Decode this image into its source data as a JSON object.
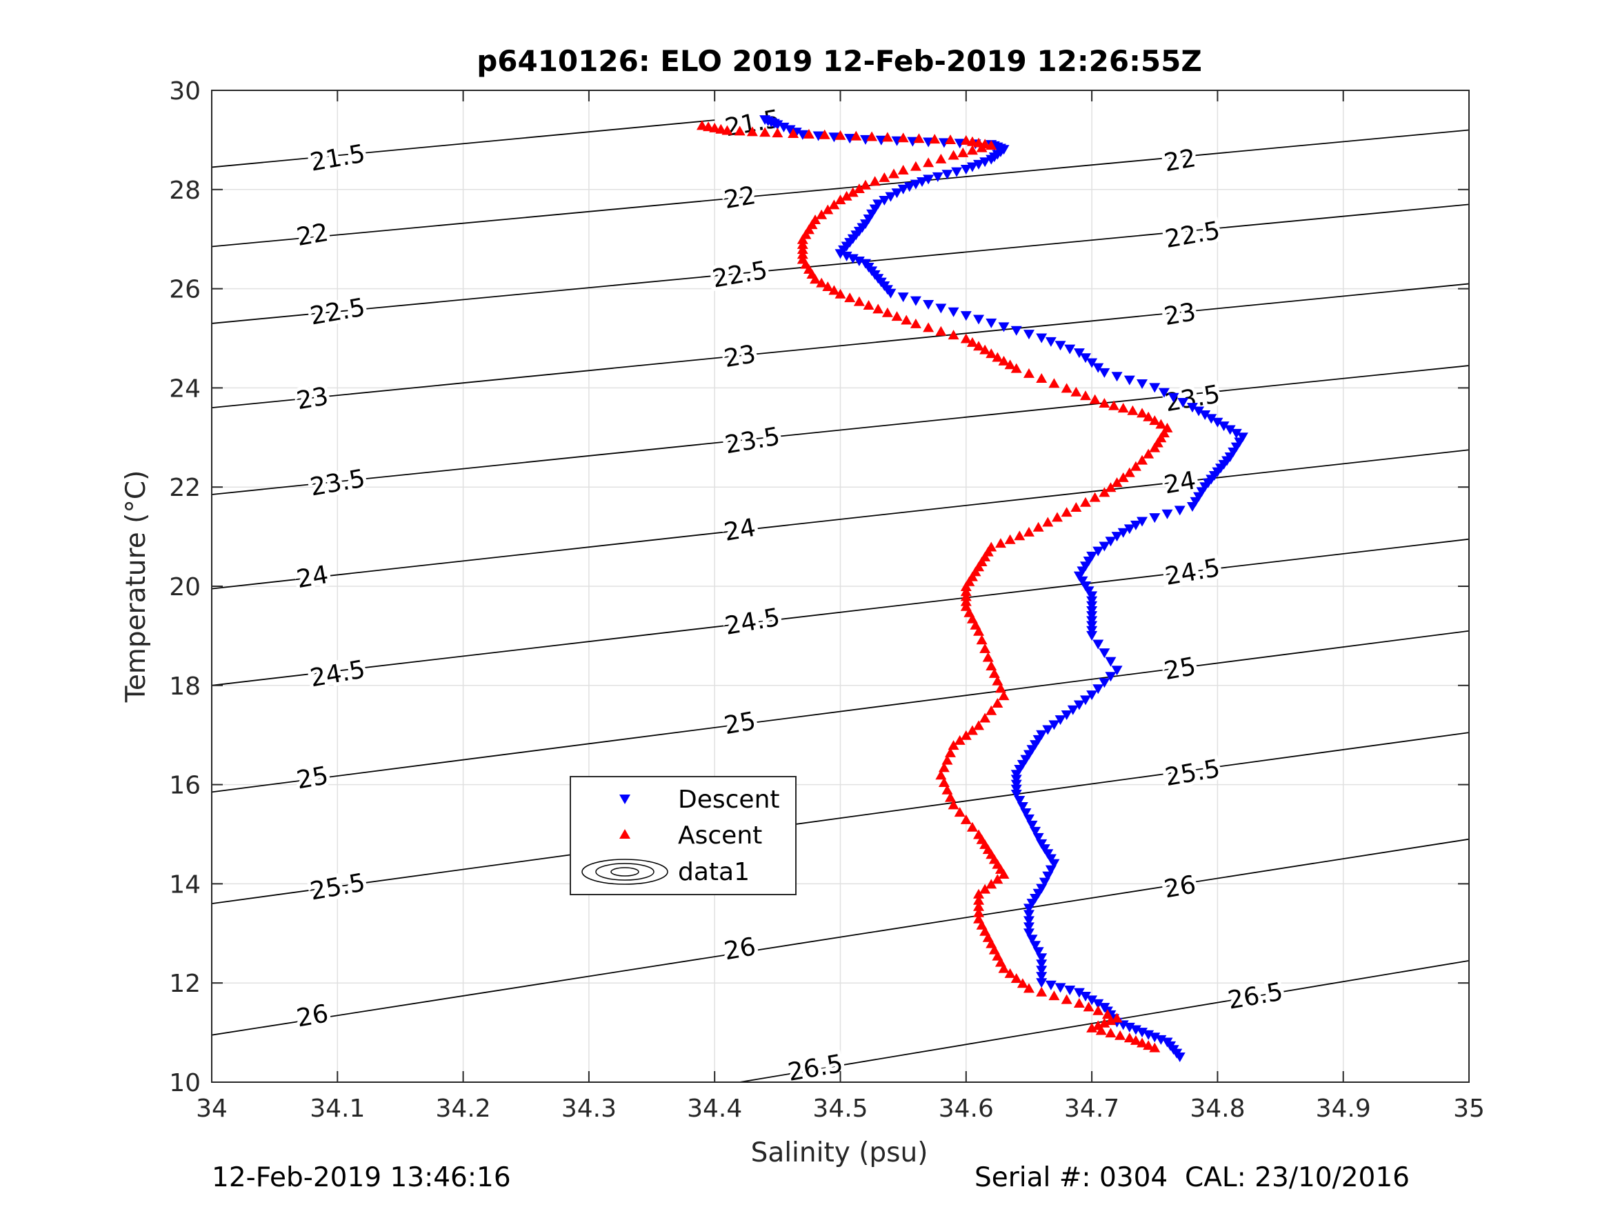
{
  "chart_data": {
    "type": "scatter",
    "title": "p6410126: ELO 2019 12-Feb-2019 12:26:55Z",
    "xlabel": "Salinity (psu)",
    "ylabel": "Temperature (°C)",
    "xlim": [
      34,
      35
    ],
    "ylim": [
      10,
      30
    ],
    "xticks": [
      "34",
      "34.1",
      "34.2",
      "34.3",
      "34.4",
      "34.5",
      "34.6",
      "34.7",
      "34.8",
      "34.9",
      "35"
    ],
    "yticks": [
      "10",
      "12",
      "14",
      "16",
      "18",
      "20",
      "22",
      "24",
      "26",
      "28",
      "30"
    ],
    "grid": true,
    "legend": {
      "placement": "lower-center-left",
      "entries": [
        {
          "label": "Descent",
          "marker": "triangle-down",
          "color": "#0000ff"
        },
        {
          "label": "Ascent",
          "marker": "triangle-up",
          "color": "#ff0000"
        },
        {
          "label": "data1",
          "marker": "contour",
          "color": "#000000"
        }
      ]
    },
    "series": [
      {
        "name": "Descent",
        "color": "#0000ff",
        "marker": "triangle-down",
        "points": [
          [
            34.44,
            29.4
          ],
          [
            34.45,
            29.3
          ],
          [
            34.47,
            29.1
          ],
          [
            34.52,
            29.0
          ],
          [
            34.57,
            28.95
          ],
          [
            34.62,
            28.9
          ],
          [
            34.63,
            28.8
          ],
          [
            34.62,
            28.6
          ],
          [
            34.6,
            28.4
          ],
          [
            34.57,
            28.2
          ],
          [
            34.55,
            28.0
          ],
          [
            34.53,
            27.7
          ],
          [
            34.52,
            27.3
          ],
          [
            34.51,
            27.0
          ],
          [
            34.5,
            26.7
          ],
          [
            34.52,
            26.5
          ],
          [
            34.53,
            26.2
          ],
          [
            34.54,
            25.9
          ],
          [
            34.58,
            25.6
          ],
          [
            34.62,
            25.3
          ],
          [
            34.66,
            25.0
          ],
          [
            34.69,
            24.7
          ],
          [
            34.71,
            24.3
          ],
          [
            34.75,
            24.0
          ],
          [
            34.78,
            23.6
          ],
          [
            34.8,
            23.3
          ],
          [
            34.82,
            23.0
          ],
          [
            34.81,
            22.6
          ],
          [
            34.8,
            22.3
          ],
          [
            34.79,
            22.0
          ],
          [
            34.78,
            21.6
          ],
          [
            34.74,
            21.3
          ],
          [
            34.72,
            21.0
          ],
          [
            34.7,
            20.6
          ],
          [
            34.69,
            20.2
          ],
          [
            34.7,
            19.8
          ],
          [
            34.7,
            19.4
          ],
          [
            34.7,
            19.0
          ],
          [
            34.72,
            18.3
          ],
          [
            34.7,
            17.8
          ],
          [
            34.68,
            17.4
          ],
          [
            34.66,
            17.0
          ],
          [
            34.65,
            16.6
          ],
          [
            34.64,
            16.2
          ],
          [
            34.64,
            15.8
          ],
          [
            34.65,
            15.3
          ],
          [
            34.66,
            14.8
          ],
          [
            34.67,
            14.4
          ],
          [
            34.66,
            13.9
          ],
          [
            34.65,
            13.5
          ],
          [
            34.65,
            13.0
          ],
          [
            34.66,
            12.5
          ],
          [
            34.66,
            12.0
          ],
          [
            34.69,
            11.8
          ],
          [
            34.71,
            11.5
          ],
          [
            34.72,
            11.2
          ],
          [
            34.74,
            11.0
          ],
          [
            34.76,
            10.8
          ],
          [
            34.77,
            10.5
          ]
        ]
      },
      {
        "name": "Ascent",
        "color": "#ff0000",
        "marker": "triangle-up",
        "points": [
          [
            34.39,
            29.3
          ],
          [
            34.41,
            29.2
          ],
          [
            34.45,
            29.15
          ],
          [
            34.5,
            29.1
          ],
          [
            34.55,
            29.05
          ],
          [
            34.6,
            29.0
          ],
          [
            34.62,
            28.9
          ],
          [
            34.59,
            28.7
          ],
          [
            34.55,
            28.4
          ],
          [
            34.52,
            28.1
          ],
          [
            34.5,
            27.8
          ],
          [
            34.48,
            27.4
          ],
          [
            34.47,
            27.0
          ],
          [
            34.47,
            26.6
          ],
          [
            34.48,
            26.2
          ],
          [
            34.5,
            25.9
          ],
          [
            34.53,
            25.6
          ],
          [
            34.56,
            25.3
          ],
          [
            34.6,
            25.0
          ],
          [
            34.62,
            24.7
          ],
          [
            34.64,
            24.4
          ],
          [
            34.68,
            24.0
          ],
          [
            34.71,
            23.7
          ],
          [
            34.74,
            23.5
          ],
          [
            34.76,
            23.2
          ],
          [
            34.75,
            22.8
          ],
          [
            34.73,
            22.3
          ],
          [
            34.71,
            21.9
          ],
          [
            34.68,
            21.5
          ],
          [
            34.65,
            21.1
          ],
          [
            34.62,
            20.8
          ],
          [
            34.61,
            20.4
          ],
          [
            34.6,
            20.0
          ],
          [
            34.6,
            19.6
          ],
          [
            34.61,
            19.1
          ],
          [
            34.62,
            18.4
          ],
          [
            34.63,
            17.8
          ],
          [
            34.61,
            17.2
          ],
          [
            34.59,
            16.8
          ],
          [
            34.58,
            16.2
          ],
          [
            34.59,
            15.6
          ],
          [
            34.61,
            15.0
          ],
          [
            34.62,
            14.6
          ],
          [
            34.63,
            14.2
          ],
          [
            34.61,
            13.8
          ],
          [
            34.61,
            13.3
          ],
          [
            34.62,
            12.8
          ],
          [
            34.63,
            12.3
          ],
          [
            34.65,
            11.9
          ],
          [
            34.69,
            11.6
          ],
          [
            34.72,
            11.3
          ],
          [
            34.7,
            11.1
          ],
          [
            34.73,
            10.9
          ],
          [
            34.75,
            10.7
          ]
        ]
      }
    ],
    "contours": [
      {
        "label": "21.5",
        "s0": 34.0,
        "t0": 28.45,
        "s1": 34.4,
        "t1": 29.4
      },
      {
        "label": "22",
        "s0": 34.0,
        "t0": 26.85,
        "s1": 35.0,
        "t1": 29.2
      },
      {
        "label": "22.5",
        "s0": 34.0,
        "t0": 25.3,
        "s1": 35.0,
        "t1": 27.7
      },
      {
        "label": "23",
        "s0": 34.0,
        "t0": 23.6,
        "s1": 35.0,
        "t1": 26.1
      },
      {
        "label": "23.5",
        "s0": 34.0,
        "t0": 21.85,
        "s1": 35.0,
        "t1": 24.45
      },
      {
        "label": "24",
        "s0": 34.0,
        "t0": 19.95,
        "s1": 35.0,
        "t1": 22.75
      },
      {
        "label": "24.5",
        "s0": 34.0,
        "t0": 18.0,
        "s1": 35.0,
        "t1": 20.95
      },
      {
        "label": "25",
        "s0": 34.0,
        "t0": 15.85,
        "s1": 35.0,
        "t1": 19.1
      },
      {
        "label": "25.5",
        "s0": 34.0,
        "t0": 13.6,
        "s1": 35.0,
        "t1": 17.05
      },
      {
        "label": "26",
        "s0": 34.0,
        "t0": 10.95,
        "s1": 35.0,
        "t1": 14.9
      },
      {
        "label": "26.5",
        "s0": 34.42,
        "t0": 10.0,
        "s1": 35.0,
        "t1": 12.45
      }
    ],
    "contour_labels": [
      {
        "text": "21.5",
        "s": 34.1,
        "t": 28.65
      },
      {
        "text": "21.5",
        "s": 34.43,
        "t": 29.35
      },
      {
        "text": "22",
        "s": 34.08,
        "t": 27.1
      },
      {
        "text": "22",
        "s": 34.42,
        "t": 27.85
      },
      {
        "text": "22",
        "s": 34.77,
        "t": 28.6
      },
      {
        "text": "22.5",
        "s": 34.1,
        "t": 25.55
      },
      {
        "text": "22.5",
        "s": 34.42,
        "t": 26.3
      },
      {
        "text": "22.5",
        "s": 34.78,
        "t": 27.1
      },
      {
        "text": "23",
        "s": 34.08,
        "t": 23.8
      },
      {
        "text": "23",
        "s": 34.42,
        "t": 24.65
      },
      {
        "text": "23",
        "s": 34.77,
        "t": 25.5
      },
      {
        "text": "23.5",
        "s": 34.1,
        "t": 22.1
      },
      {
        "text": "23.5",
        "s": 34.43,
        "t": 22.95
      },
      {
        "text": "23.5",
        "s": 34.78,
        "t": 23.8
      },
      {
        "text": "24",
        "s": 34.08,
        "t": 20.2
      },
      {
        "text": "24",
        "s": 34.42,
        "t": 21.15
      },
      {
        "text": "24",
        "s": 34.77,
        "t": 22.1
      },
      {
        "text": "24.5",
        "s": 34.1,
        "t": 18.25
      },
      {
        "text": "24.5",
        "s": 34.43,
        "t": 19.3
      },
      {
        "text": "24.5",
        "s": 34.78,
        "t": 20.3
      },
      {
        "text": "25",
        "s": 34.08,
        "t": 16.15
      },
      {
        "text": "25",
        "s": 34.42,
        "t": 17.25
      },
      {
        "text": "25",
        "s": 34.77,
        "t": 18.35
      },
      {
        "text": "25.5",
        "s": 34.1,
        "t": 13.95
      },
      {
        "text": "25.5",
        "s": 34.43,
        "t": 15.1
      },
      {
        "text": "25.5",
        "s": 34.78,
        "t": 16.25
      },
      {
        "text": "26",
        "s": 34.08,
        "t": 11.35
      },
      {
        "text": "26",
        "s": 34.42,
        "t": 12.7
      },
      {
        "text": "26",
        "s": 34.77,
        "t": 13.95
      },
      {
        "text": "26.5",
        "s": 34.48,
        "t": 10.3
      },
      {
        "text": "26.5",
        "s": 34.83,
        "t": 11.75
      }
    ]
  },
  "footer": {
    "timestamp": "12-Feb-2019 13:46:16",
    "serial": "Serial #: 0304  CAL: 23/10/2016"
  }
}
